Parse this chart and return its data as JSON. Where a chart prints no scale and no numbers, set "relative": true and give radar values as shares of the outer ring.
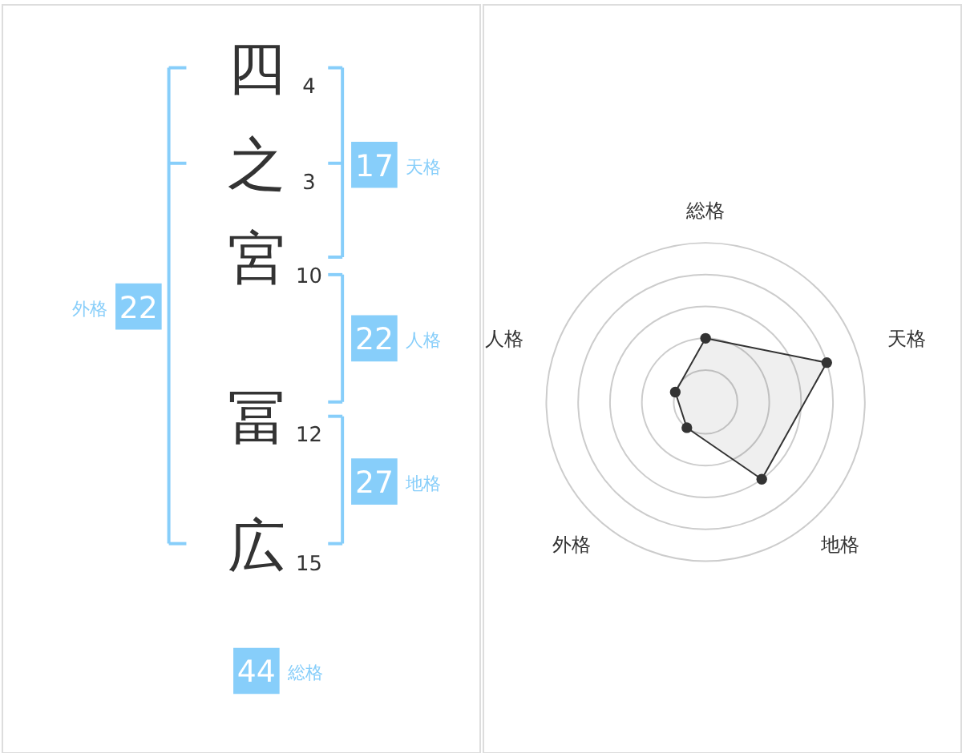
{
  "chart_data": [
    {
      "type": "other",
      "categories": [
        "天格",
        "人格",
        "地格",
        "外格",
        "総格"
      ],
      "values": [
        17,
        22,
        27,
        22,
        44
      ],
      "color": "#87cefa",
      "data_labels": true,
      "annotations": [
        "四",
        "4",
        "之",
        "3",
        "宮",
        "10",
        "冨",
        "12",
        "広",
        "15"
      ]
    },
    {
      "type": "radar",
      "categories": [
        "総格",
        "天格",
        "地格",
        "外格",
        "人格"
      ],
      "relative": true,
      "grid": true,
      "marker": "circle",
      "series": [
        {
          "color": "#333333",
          "values": [
            0.4,
            0.8,
            0.6,
            0.2,
            0.2
          ]
        }
      ]
    }
  ]
}
